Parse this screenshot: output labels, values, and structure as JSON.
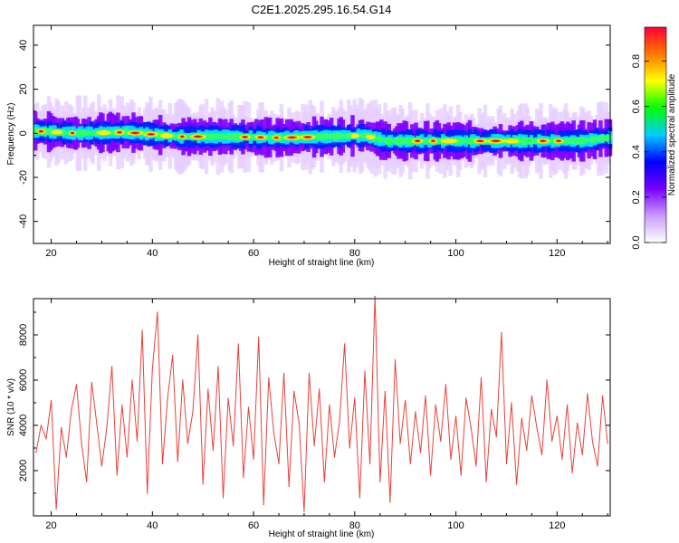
{
  "title": "C2E1.2025.295.16.54.G14",
  "colors": {
    "snr_line": "#e8403a",
    "frame": "#000000",
    "background": "#ffffff"
  },
  "chart_data": [
    {
      "type": "heatmap",
      "xlabel": "Height of straight line (km)",
      "ylabel": "Frequency (Hz)",
      "xlim": [
        16.5,
        130.5
      ],
      "ylim": [
        -50,
        49
      ],
      "x_ticks": [
        "20",
        "40",
        "60",
        "80",
        "100",
        "120"
      ],
      "y_ticks": [
        "-40",
        "-20",
        "0",
        "20",
        "40"
      ],
      "colorbar": {
        "label": "Normalized spectral amplitude",
        "range": [
          0,
          0.95
        ],
        "ticks": [
          "0.0",
          "0.2",
          "0.4",
          "0.6",
          "0.8"
        ],
        "colormap": [
          "#ffffff",
          "#cc99ff",
          "#7700ff",
          "#0000ff",
          "#00ccff",
          "#00ff00",
          "#ffff00",
          "#ff7700",
          "#ff0033"
        ]
      },
      "ridge": {
        "x": [
          17,
          25,
          35,
          45,
          55,
          65,
          75,
          82,
          86,
          95,
          105,
          115,
          125,
          130
        ],
        "frequency": [
          1,
          0,
          0.5,
          -1.5,
          -1.5,
          -2,
          -1.5,
          -1,
          -3.5,
          -3.5,
          -3.5,
          -3.5,
          -3.5,
          -2
        ]
      }
    },
    {
      "type": "line",
      "xlabel": "Height of straight line (km)",
      "ylabel": "SNR (10 * v/v)",
      "xlim": [
        16.5,
        130.5
      ],
      "ylim": [
        0,
        9600
      ],
      "x_ticks": [
        "20",
        "40",
        "60",
        "80",
        "100",
        "120"
      ],
      "y_ticks": [
        "2000",
        "4000",
        "6000",
        "8000"
      ],
      "series": [
        {
          "x": [
            17,
            18,
            19,
            20,
            21,
            22,
            23,
            24,
            25,
            26,
            27,
            28,
            29,
            30,
            31,
            32,
            33,
            34,
            35,
            36,
            37,
            38,
            39,
            40,
            41,
            42,
            43,
            44,
            45,
            46,
            47,
            48,
            49,
            50,
            51,
            52,
            53,
            54,
            55,
            56,
            57,
            58,
            59,
            60,
            61,
            62,
            63,
            64,
            65,
            66,
            67,
            68,
            69,
            70,
            71,
            72,
            73,
            74,
            75,
            76,
            77,
            78,
            79,
            80,
            81,
            82,
            83,
            84,
            85,
            86,
            87,
            88,
            89,
            90,
            91,
            92,
            93,
            94,
            95,
            96,
            97,
            98,
            99,
            100,
            101,
            102,
            103,
            104,
            105,
            106,
            107,
            108,
            109,
            110,
            111,
            112,
            113,
            114,
            115,
            116,
            117,
            118,
            119,
            120,
            121,
            122,
            123,
            124,
            125,
            126,
            127,
            128,
            129,
            130
          ],
          "values": [
            2800,
            4000,
            3400,
            5100,
            300,
            3900,
            2600,
            4700,
            5800,
            3200,
            1500,
            5900,
            4100,
            2200,
            3900,
            6600,
            1800,
            4900,
            2600,
            6000,
            3300,
            8200,
            1000,
            6500,
            9000,
            2300,
            5200,
            7100,
            2400,
            6000,
            3200,
            4600,
            8000,
            1400,
            5600,
            2900,
            6600,
            800,
            5200,
            3100,
            7600,
            1700,
            4800,
            2500,
            7900,
            500,
            6100,
            3700,
            2300,
            6300,
            1300,
            5500,
            4100,
            200,
            6300,
            3100,
            5600,
            1500,
            4900,
            2600,
            4200,
            7600,
            3000,
            5200,
            800,
            6400,
            2300,
            9700,
            1500,
            5500,
            600,
            6900,
            3200,
            5100,
            2300,
            4600,
            2800,
            5300,
            1800,
            4900,
            3300,
            5800,
            2500,
            4400,
            1800,
            5200,
            3900,
            2200,
            6100,
            1500,
            4700,
            3500,
            8100,
            2300,
            5000,
            1400,
            4300,
            2900,
            5300,
            3900,
            2700,
            6000,
            3300,
            4400,
            2500,
            4900,
            1900,
            4100,
            2700,
            5400,
            3300,
            2200,
            5300,
            3200
          ]
        }
      ]
    }
  ]
}
